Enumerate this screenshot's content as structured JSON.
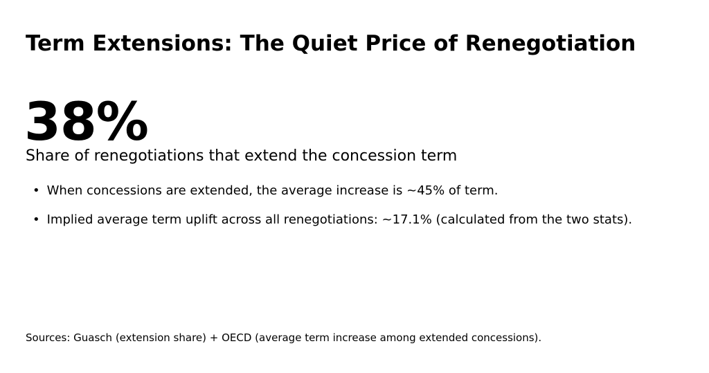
{
  "slide": {
    "title": "Term Extensions: The Quiet Price of Renegotiation",
    "stat": {
      "value": "38%",
      "label": "Share of renegotiations that extend the concession term"
    },
    "bullet_marker": "•",
    "bullets": [
      "When concessions are extended, the average increase is ~45% of term.",
      "Implied average term uplift across all renegotiations: ~17.1% (calculated from the two stats)."
    ],
    "source": "Sources: Guasch (extension share) + OECD (average term increase among extended concessions).",
    "colors": {
      "background": "#ffffff",
      "text": "#000000"
    }
  }
}
